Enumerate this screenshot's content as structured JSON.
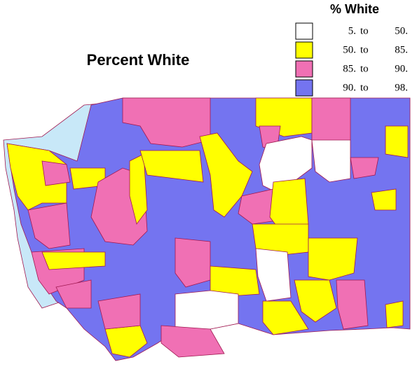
{
  "title": "Percent White",
  "legend": {
    "title": "% White",
    "connector": "to",
    "items": [
      {
        "from": "5.",
        "to": "50.",
        "color": "#ffffff"
      },
      {
        "from": "50.",
        "to": "85.",
        "color": "#ffff00"
      },
      {
        "from": "85.",
        "to": "90.",
        "color": "#f070b4"
      },
      {
        "from": "90.",
        "to": "98.",
        "color": "#7474f0"
      }
    ]
  }
}
